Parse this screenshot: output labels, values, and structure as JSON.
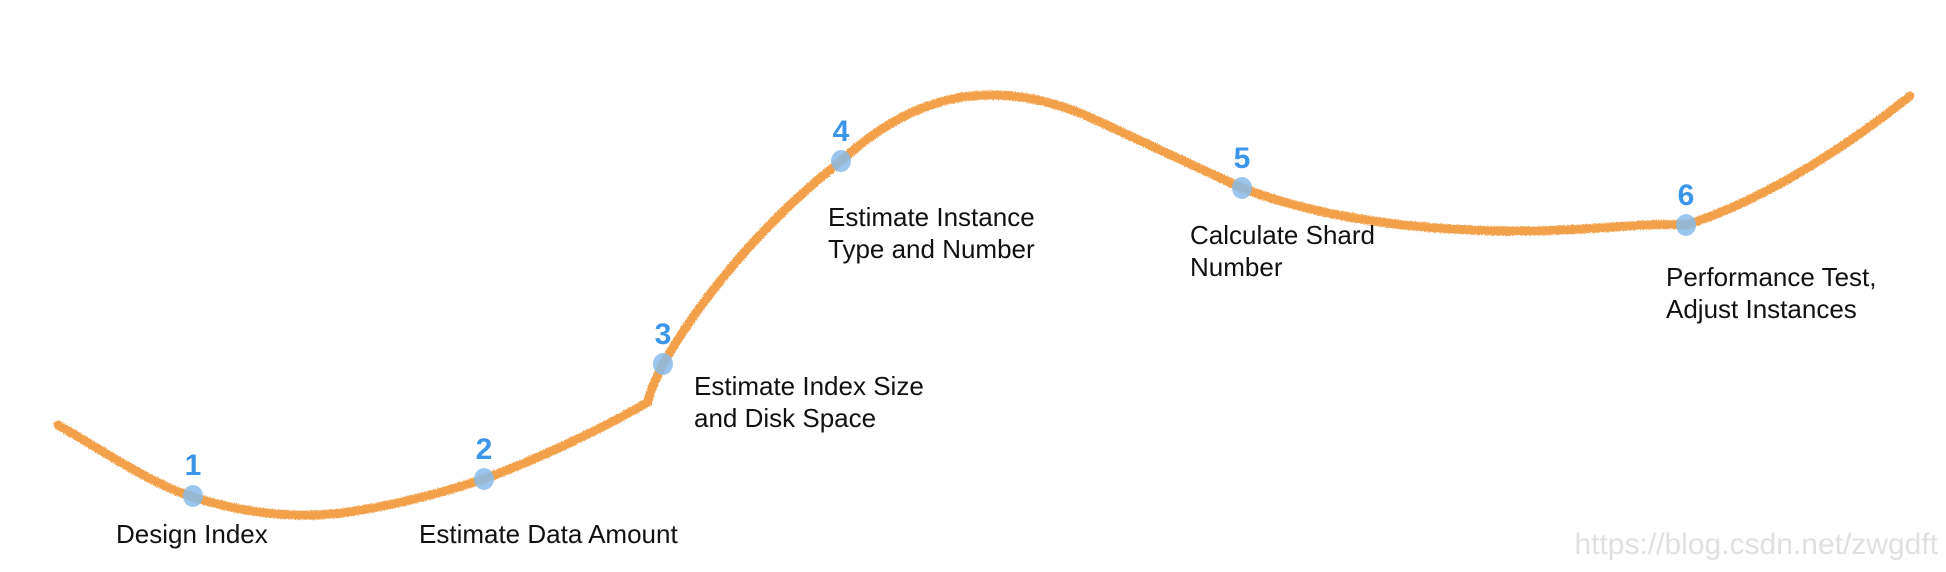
{
  "diagram": {
    "curve_color": "#f2a04a",
    "marker_color": "#88bcea",
    "number_color": "#3b96ea",
    "steps": [
      {
        "number": "1",
        "label_lines": [
          "Design Index"
        ]
      },
      {
        "number": "2",
        "label_lines": [
          "Estimate Data Amount"
        ]
      },
      {
        "number": "3",
        "label_lines": [
          "Estimate Index Size",
          "and Disk Space"
        ]
      },
      {
        "number": "4",
        "label_lines": [
          "Estimate Instance",
          "Type and Number"
        ]
      },
      {
        "number": "5",
        "label_lines": [
          "Calculate Shard",
          "Number"
        ]
      },
      {
        "number": "6",
        "label_lines": [
          "Performance Test,",
          "Adjust Instances"
        ]
      }
    ]
  },
  "watermark": "https://blog.csdn.net/zwgdft"
}
